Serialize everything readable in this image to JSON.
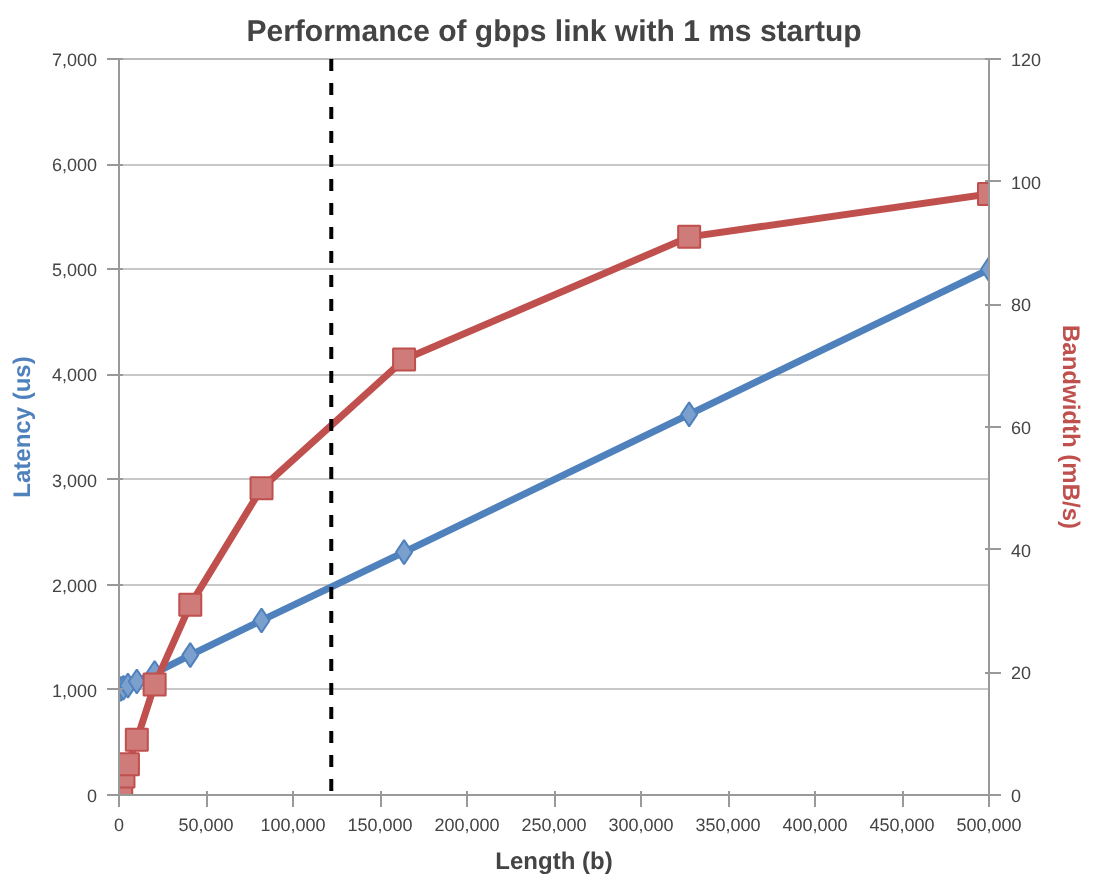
{
  "chart_data": {
    "type": "line",
    "title": "Performance of gbps link with 1 ms startup",
    "xlabel": "Length (b)",
    "ylabel": "Latency (us)",
    "y2label": "Bandwidth (mB/s)",
    "x": [
      0,
      1280,
      2560,
      5120,
      10240,
      20480,
      40960,
      81920,
      163840,
      327680,
      500000
    ],
    "series": [
      {
        "color": "#4f81bd",
        "marker": "diamond",
        "values": [
          1000,
          1010,
          1020,
          1040,
          1080,
          1160,
          1330,
          1660,
          2310,
          3620,
          5000
        ]
      },
      {
        "color": "#c0504d",
        "marker": "square",
        "axis": "y2",
        "values": [
          0,
          1,
          3,
          5,
          9,
          18,
          31,
          50,
          71,
          91,
          98
        ]
      }
    ],
    "xlim": [
      0,
      500000
    ],
    "xticks": [
      0,
      {
        "value": 50000,
        "label": "50,000"
      },
      {
        "value": 100000,
        "label": "100,000"
      },
      {
        "value": 150000,
        "label": "150,000"
      },
      {
        "value": 200000,
        "label": "200,000"
      },
      {
        "value": 250000,
        "label": "250,000"
      },
      {
        "value": 300000,
        "label": "300,000"
      },
      {
        "value": 350000,
        "label": "350,000"
      },
      {
        "value": 400000,
        "label": "400,000"
      },
      {
        "value": 450000,
        "label": "450,000"
      },
      {
        "value": 500000,
        "label": "500,000"
      }
    ],
    "ylim": [
      0,
      7000
    ],
    "yticks": [
      0,
      {
        "value": 1000,
        "label": "1,000"
      },
      {
        "value": 2000,
        "label": "2,000"
      },
      {
        "value": 3000,
        "label": "3,000"
      },
      {
        "value": 4000,
        "label": "4,000"
      },
      {
        "value": 5000,
        "label": "5,000"
      },
      {
        "value": 6000,
        "label": "6,000"
      },
      {
        "value": 7000,
        "label": "7,000"
      }
    ],
    "y2lim": [
      0,
      120
    ],
    "y2ticks": [
      0,
      20,
      40,
      60,
      80,
      100,
      120
    ],
    "ref_lines": [
      {
        "axis": "x",
        "value": 122000,
        "line_style": "dashed",
        "color": "#000000"
      }
    ],
    "grid": "y"
  }
}
